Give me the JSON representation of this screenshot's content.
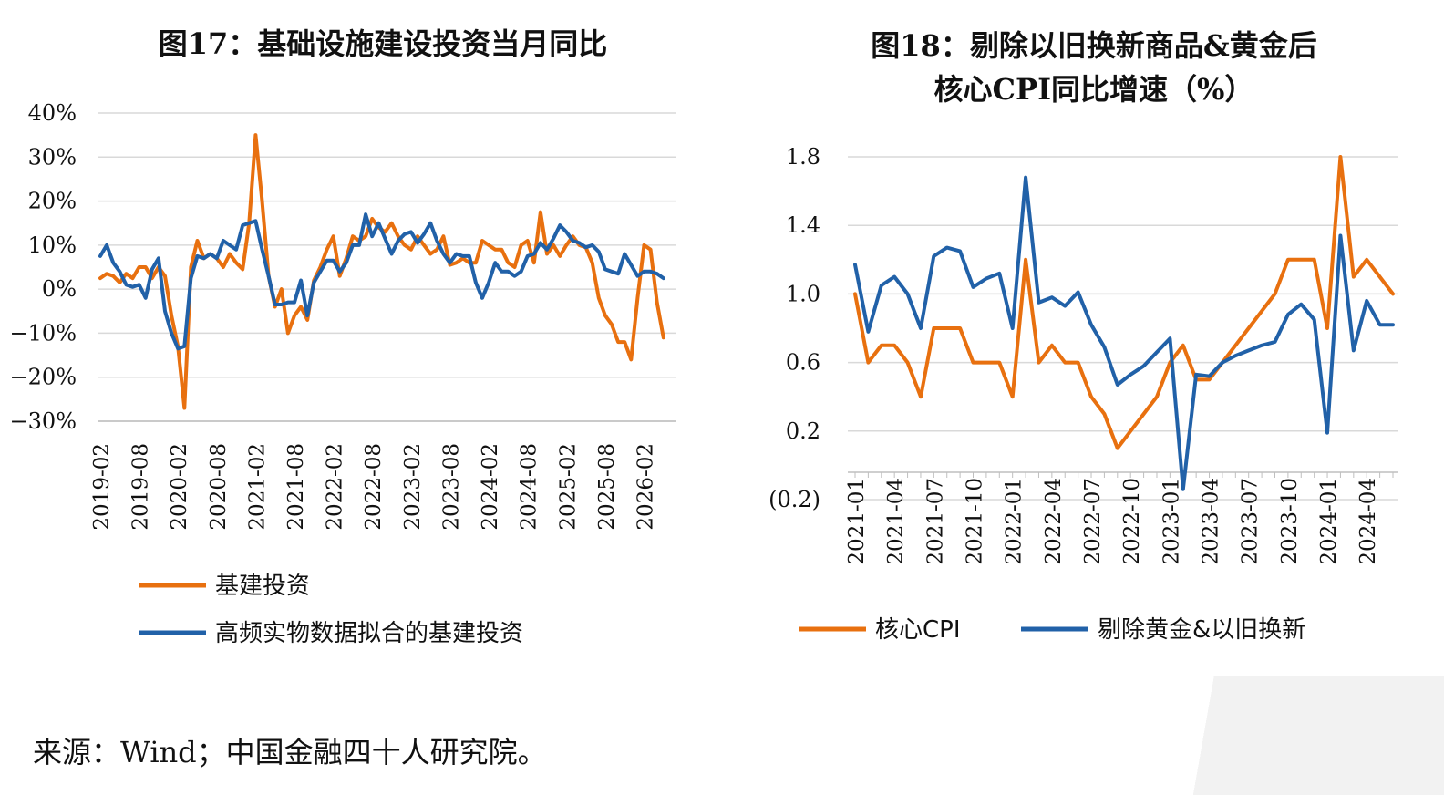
{
  "source": "来源：Wind；中国金融四十人研究院。",
  "colors": {
    "orange": "#E8700F",
    "blue": "#2161A8",
    "grid": "#d9d9d9"
  },
  "chart_data": [
    {
      "type": "line",
      "title": "图17：基础设施建设投资当月同比",
      "ylim": [
        -30,
        40
      ],
      "yticks": [
        -30,
        -20,
        -10,
        0,
        10,
        20,
        30,
        40
      ],
      "ytick_labels": [
        "−30%",
        "−20%",
        "−10%",
        "0%",
        "10%",
        "20%",
        "30%",
        "40%"
      ],
      "xticks": [
        "2019-02",
        "2019-08",
        "2020-02",
        "2020-08",
        "2021-02",
        "2021-08",
        "2022-02",
        "2022-08",
        "2023-02",
        "2023-08",
        "2024-02",
        "2024-08",
        "2025-02",
        "2025-08",
        "2026-02"
      ],
      "xtick_index": [
        0,
        6,
        12,
        18,
        24,
        30,
        36,
        42,
        48,
        54,
        60,
        66,
        72,
        78,
        84
      ],
      "n_points": 90,
      "legend_position": "bottom",
      "series": [
        {
          "name": "基建投资",
          "color": "#E8700F",
          "values": [
            2.5,
            3.5,
            3,
            1.5,
            3.5,
            2.5,
            5,
            5,
            2.5,
            5,
            3,
            -6,
            -13,
            -27,
            5,
            11,
            7,
            8,
            7,
            5,
            8,
            6,
            4.5,
            15,
            35,
            20,
            3,
            -4,
            0,
            -10,
            -6,
            -4,
            -7,
            2,
            5,
            9,
            12,
            3,
            7,
            12,
            11,
            12,
            16,
            14,
            13,
            15,
            12,
            10,
            9,
            12,
            10,
            8,
            9,
            12,
            5.5,
            6,
            7,
            6,
            6,
            11,
            10,
            9,
            9,
            6,
            5,
            10,
            11,
            6,
            17.5,
            8,
            10,
            7.5,
            10,
            12,
            10,
            9.5,
            6,
            -2,
            -6,
            -8,
            -12,
            -12,
            -16,
            -2,
            10,
            9,
            -3,
            -11
          ]
        },
        {
          "name": "高频实物数据拟合的基建投资",
          "color": "#2161A8",
          "values": [
            7.5,
            10,
            6,
            4,
            1,
            0.5,
            1,
            -2,
            4.5,
            7,
            -5,
            -10,
            -13.5,
            -13,
            2.5,
            7.5,
            7,
            8,
            7,
            11,
            10,
            9,
            14.5,
            15,
            15.5,
            9,
            3,
            -3.5,
            -3.5,
            -3,
            -3,
            2,
            -6,
            1.5,
            4,
            6.5,
            6.5,
            4,
            6,
            10,
            10,
            17,
            12,
            15,
            11.5,
            8,
            11,
            12.5,
            13,
            10.5,
            12.5,
            15,
            11,
            8,
            6,
            8,
            7.5,
            7.5,
            1.5,
            -2,
            1.5,
            6,
            4,
            4,
            3,
            4,
            7.5,
            8,
            10.5,
            9,
            11.5,
            14.5,
            13,
            11,
            10.5,
            9.5,
            10,
            8.5,
            4.5,
            4,
            3.5,
            8,
            5.5,
            3,
            4,
            4,
            3.5,
            2.5
          ]
        }
      ]
    },
    {
      "type": "line",
      "title": "图18：剔除以旧换新商品&黄金后\n核心CPI同比增速（%）",
      "ylim": [
        -0.2,
        1.8
      ],
      "yticks": [
        -0.2,
        0.2,
        0.6,
        1.0,
        1.4,
        1.8
      ],
      "ytick_labels": [
        "(0.2)",
        "0.2",
        "0.6",
        "1.0",
        "1.4",
        "1.8"
      ],
      "xticks": [
        "2021-01",
        "2021-04",
        "2021-07",
        "2021-10",
        "2022-01",
        "2022-04",
        "2022-07",
        "2022-10",
        "2023-01",
        "2023-04",
        "2023-07",
        "2023-10",
        "2024-01",
        "2024-04"
      ],
      "xtick_index": [
        0,
        3,
        6,
        9,
        12,
        15,
        18,
        21,
        24,
        27,
        30,
        33,
        36,
        39
      ],
      "n_points": 42,
      "legend_position": "bottom",
      "series": [
        {
          "name": "核心CPI",
          "color": "#E8700F",
          "values": [
            1.0,
            0.6,
            0.7,
            0.7,
            0.6,
            0.4,
            0.8,
            0.8,
            0.8,
            0.6,
            0.6,
            0.6,
            0.4,
            1.2,
            0.6,
            0.7,
            0.6,
            0.6,
            0.4,
            0.3,
            0.1,
            0.2,
            0.3,
            0.4,
            0.6,
            0.7,
            0.5,
            0.5,
            0.6,
            0.7,
            0.8,
            0.9,
            1.0,
            1.2,
            1.2,
            1.2,
            0.8,
            1.8,
            1.1,
            1.2,
            1.1,
            1.0
          ]
        },
        {
          "name": "剔除黄金&以旧换新",
          "color": "#2161A8",
          "values": [
            1.17,
            0.78,
            1.05,
            1.1,
            1.0,
            0.8,
            1.22,
            1.27,
            1.25,
            1.04,
            1.09,
            1.12,
            0.8,
            1.68,
            0.95,
            0.98,
            0.93,
            1.01,
            0.82,
            0.69,
            0.47,
            0.53,
            0.58,
            0.66,
            0.74,
            -0.14,
            0.53,
            0.52,
            0.6,
            0.64,
            0.67,
            0.7,
            0.72,
            0.88,
            0.94,
            0.85,
            0.19,
            1.34,
            0.67,
            0.96,
            0.82,
            0.82
          ]
        }
      ]
    }
  ]
}
